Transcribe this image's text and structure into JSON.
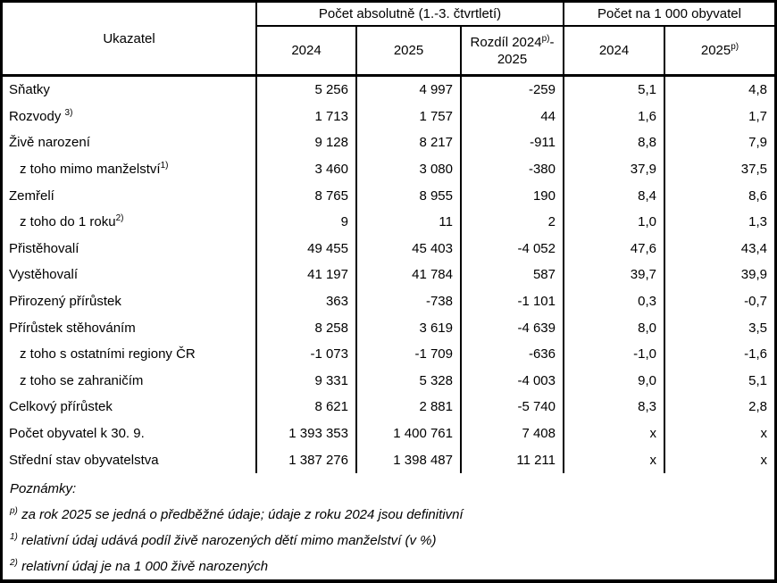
{
  "colors": {
    "border": "#000000",
    "text": "#000000",
    "background": "#ffffff"
  },
  "table": {
    "header": {
      "indicator": "Ukazatel",
      "group_absolute": "Počet absolutně (1.-3. čtvrtletí)",
      "group_per_1000": "Počet na 1 000 obyvatel",
      "col_abs_2024": "2024",
      "col_abs_2025": "2025",
      "col_diff": [
        {
          "t": "Rozdíl 2024"
        },
        {
          "s": "p)"
        },
        {
          "t": "-"
        },
        {
          "br": true
        },
        {
          "t": "2025"
        }
      ],
      "col_rel_2024": "2024",
      "col_rel_2025": [
        {
          "t": "2025"
        },
        {
          "s": "p)"
        }
      ]
    },
    "rows": [
      {
        "label": [
          {
            "t": "Sňatky"
          }
        ],
        "indent": false,
        "values": [
          "5 256",
          "4 997",
          "-259",
          "5,1",
          "4,8"
        ]
      },
      {
        "label": [
          {
            "t": "Rozvody "
          },
          {
            "s": "3)"
          }
        ],
        "indent": false,
        "values": [
          "1 713",
          "1 757",
          "44",
          "1,6",
          "1,7"
        ]
      },
      {
        "label": [
          {
            "t": "Živě narození"
          }
        ],
        "indent": false,
        "values": [
          "9 128",
          "8 217",
          "-911",
          "8,8",
          "7,9"
        ]
      },
      {
        "label": [
          {
            "t": "z toho mimo manželství"
          },
          {
            "s": "1)"
          }
        ],
        "indent": true,
        "values": [
          "3 460",
          "3 080",
          "-380",
          "37,9",
          "37,5"
        ]
      },
      {
        "label": [
          {
            "t": "Zemřelí"
          }
        ],
        "indent": false,
        "values": [
          "8 765",
          "8 955",
          "190",
          "8,4",
          "8,6"
        ]
      },
      {
        "label": [
          {
            "t": "z toho do 1 roku"
          },
          {
            "s": "2)"
          }
        ],
        "indent": true,
        "values": [
          "9",
          "11",
          "2",
          "1,0",
          "1,3"
        ]
      },
      {
        "label": [
          {
            "t": "Přistěhovalí"
          }
        ],
        "indent": false,
        "values": [
          "49 455",
          "45 403",
          "-4 052",
          "47,6",
          "43,4"
        ]
      },
      {
        "label": [
          {
            "t": "Vystěhovalí"
          }
        ],
        "indent": false,
        "values": [
          "41 197",
          "41 784",
          "587",
          "39,7",
          "39,9"
        ]
      },
      {
        "label": [
          {
            "t": "Přirozený přírůstek"
          }
        ],
        "indent": false,
        "values": [
          "363",
          "-738",
          "-1 101",
          "0,3",
          "-0,7"
        ]
      },
      {
        "label": [
          {
            "t": "Přírůstek stěhováním"
          }
        ],
        "indent": false,
        "values": [
          "8 258",
          "3 619",
          "-4 639",
          "8,0",
          "3,5"
        ]
      },
      {
        "label": [
          {
            "t": "z toho s ostatními regiony ČR"
          }
        ],
        "indent": true,
        "values": [
          "-1 073",
          "-1 709",
          "-636",
          "-1,0",
          "-1,6"
        ]
      },
      {
        "label": [
          {
            "t": "z toho se zahraničím"
          }
        ],
        "indent": true,
        "values": [
          "9 331",
          "5 328",
          "-4 003",
          "9,0",
          "5,1"
        ]
      },
      {
        "label": [
          {
            "t": "Celkový přírůstek"
          }
        ],
        "indent": false,
        "values": [
          "8 621",
          "2 881",
          "-5 740",
          "8,3",
          "2,8"
        ]
      },
      {
        "label": [
          {
            "t": "Počet obyvatel k 30. 9."
          }
        ],
        "indent": false,
        "values": [
          "1 393 353",
          "1 400 761",
          "7 408",
          "x",
          "x"
        ]
      },
      {
        "label": [
          {
            "t": "Střední stav obyvatelstva"
          }
        ],
        "indent": false,
        "values": [
          "1 387 276",
          "1 398 487",
          "11 211",
          "x",
          "x"
        ]
      }
    ]
  },
  "notes": {
    "title": "Poznámky:",
    "items": [
      [
        {
          "s": "p)"
        },
        {
          "t": " za rok 2025 se jedná o předběžné údaje; údaje z roku 2024 jsou definitivní"
        }
      ],
      [
        {
          "s": "1)"
        },
        {
          "t": " relativní údaj udává podíl živě narozených dětí mimo manželství (v %)"
        }
      ],
      [
        {
          "s": "2)"
        },
        {
          "t": " relativní údaj je na 1 000 živě narozených"
        }
      ]
    ]
  }
}
